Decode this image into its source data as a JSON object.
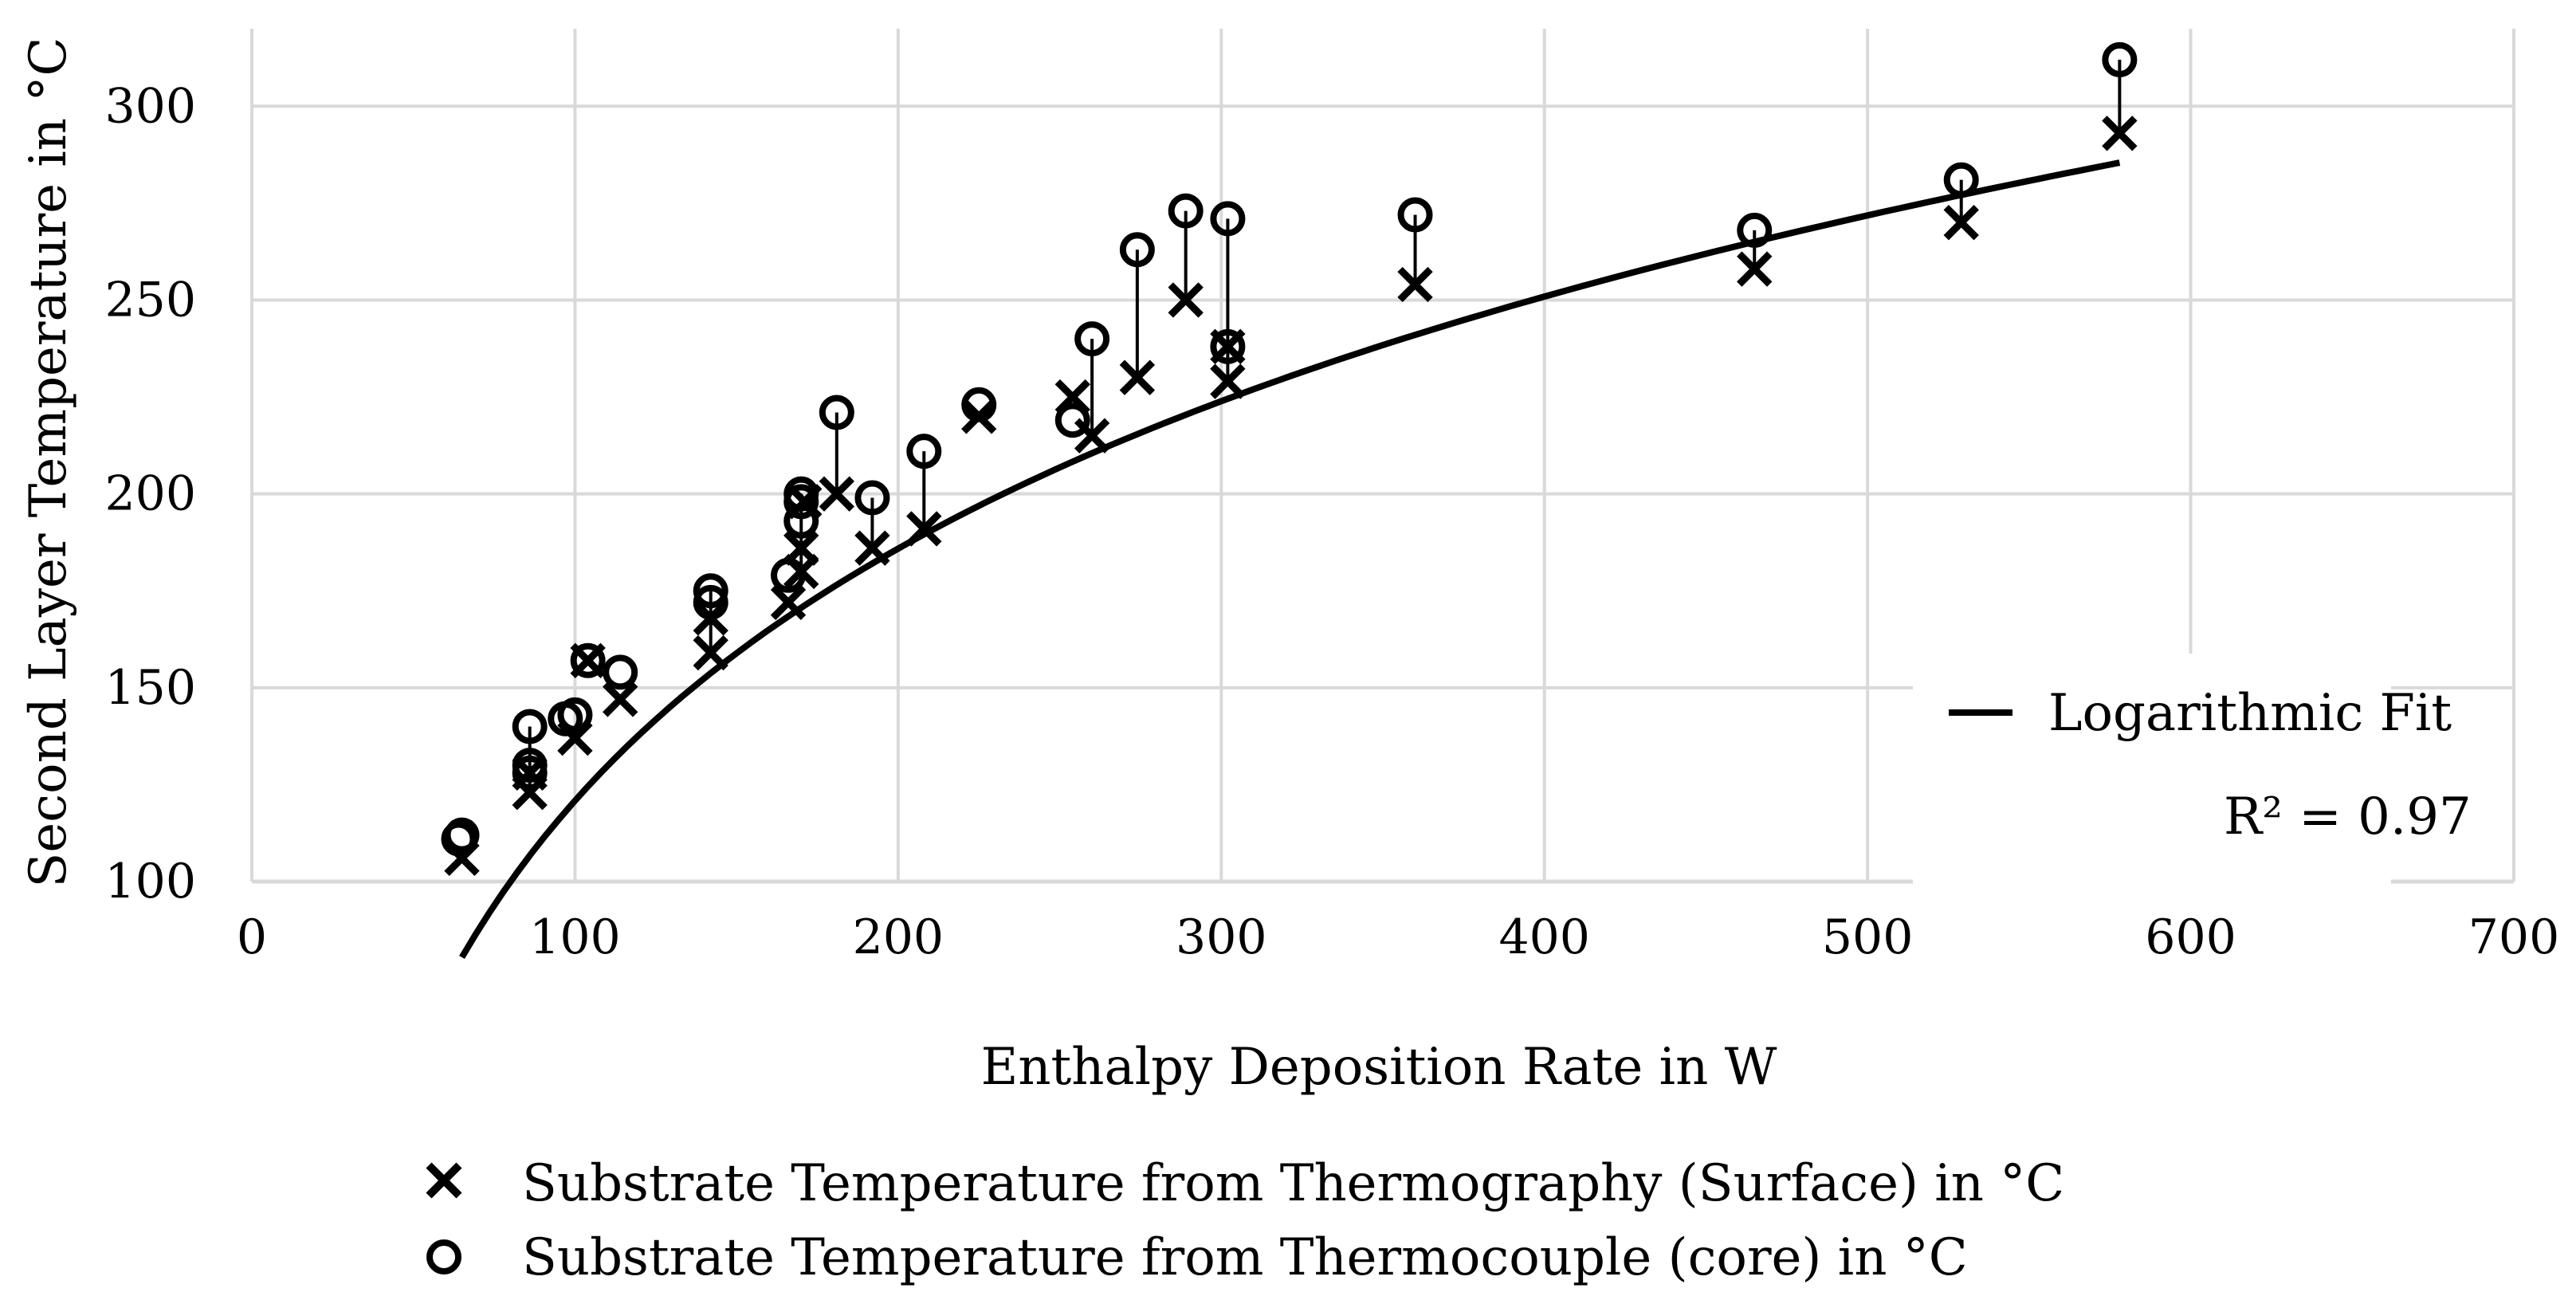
{
  "chart_data": {
    "type": "scatter",
    "title": "",
    "xlabel": "Enthalpy Deposition Rate in W",
    "ylabel": "Second Layer Temperature in °C",
    "xlim": [
      0,
      700
    ],
    "ylim": [
      100,
      320
    ],
    "x_ticks": [
      "0",
      "100",
      "200",
      "300",
      "400",
      "500",
      "600",
      "700"
    ],
    "y_ticks": [
      "100",
      "150",
      "200",
      "250",
      "300"
    ],
    "grid": true,
    "series": [
      {
        "name": "Substrate Temperature from Thermography (Surface) in °C",
        "marker": "x",
        "points": [
          [
            65,
            106
          ],
          [
            86,
            123
          ],
          [
            86,
            128
          ],
          [
            100,
            137
          ],
          [
            104,
            157
          ],
          [
            114,
            147
          ],
          [
            142,
            159
          ],
          [
            142,
            168
          ],
          [
            166,
            172
          ],
          [
            170,
            180
          ],
          [
            170,
            186
          ],
          [
            171,
            198
          ],
          [
            181,
            200
          ],
          [
            192,
            186
          ],
          [
            208,
            191
          ],
          [
            225,
            220
          ],
          [
            254,
            225
          ],
          [
            260,
            215
          ],
          [
            274,
            230
          ],
          [
            289,
            250
          ],
          [
            302,
            229
          ],
          [
            302,
            238
          ],
          [
            360,
            254
          ],
          [
            465,
            258
          ],
          [
            529,
            270
          ],
          [
            578,
            293
          ]
        ]
      },
      {
        "name": "Substrate Temperature from Thermocouple (core) in °C",
        "marker": "o",
        "points": [
          [
            64,
            111
          ],
          [
            65,
            112
          ],
          [
            86,
            128
          ],
          [
            86,
            130
          ],
          [
            86,
            140
          ],
          [
            97,
            142
          ],
          [
            100,
            143
          ],
          [
            104,
            157
          ],
          [
            114,
            154
          ],
          [
            142,
            172
          ],
          [
            142,
            175
          ],
          [
            166,
            179
          ],
          [
            170,
            193
          ],
          [
            170,
            198
          ],
          [
            170,
            200
          ],
          [
            181,
            221
          ],
          [
            192,
            199
          ],
          [
            208,
            211
          ],
          [
            225,
            223
          ],
          [
            254,
            219
          ],
          [
            260,
            240
          ],
          [
            274,
            263
          ],
          [
            289,
            273
          ],
          [
            302,
            238
          ],
          [
            302,
            271
          ],
          [
            360,
            272
          ],
          [
            465,
            268
          ],
          [
            529,
            281
          ],
          [
            578,
            312
          ]
        ]
      }
    ],
    "fit": {
      "name": "Logarithmic Fit",
      "type": "logarithmic",
      "a": -311.1,
      "b": 93.8,
      "x_range": [
        65,
        578
      ],
      "r2_label": "R² = 0.97"
    },
    "legend": {
      "fit_label": "Logarithmic Fit",
      "r2_label": "R² = 0.97",
      "fit_position": "inside-bottom-right",
      "markers_position": "below-chart"
    }
  }
}
